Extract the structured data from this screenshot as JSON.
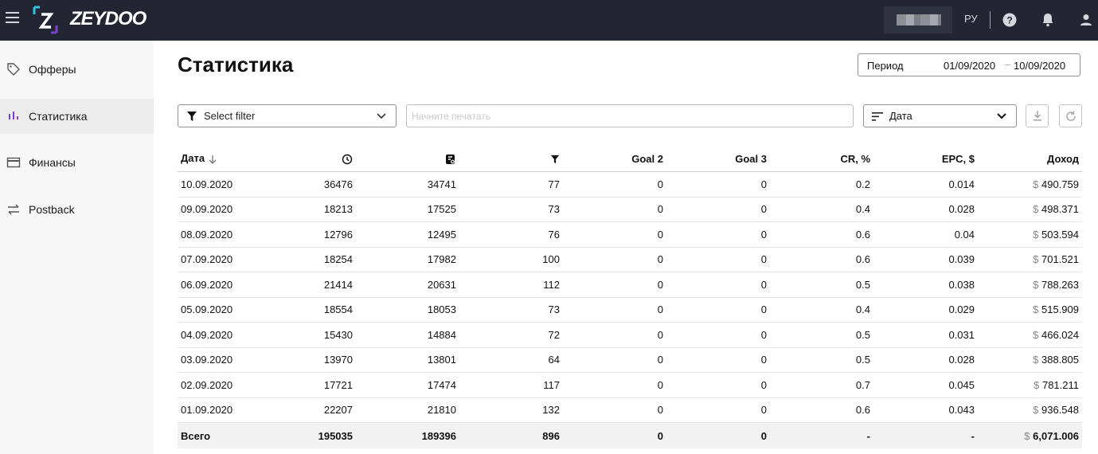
{
  "header": {
    "brand": "ZEYDOO",
    "language": "РУ"
  },
  "sidebar": {
    "items": [
      {
        "label": "Офферы",
        "icon": "tag-icon"
      },
      {
        "label": "Статистика",
        "icon": "bar-chart-icon",
        "active": true
      },
      {
        "label": "Финансы",
        "icon": "credit-card-icon"
      },
      {
        "label": "Postback",
        "icon": "swap-arrows-icon"
      }
    ]
  },
  "page": {
    "title": "Статистика"
  },
  "period": {
    "label": "Период",
    "from": "01/09/2020",
    "dash": "–",
    "to": "10/09/2020"
  },
  "toolbar": {
    "filter_label": "Select filter",
    "search_placeholder": "Начните печатать",
    "sort_label": "Дата"
  },
  "table": {
    "date_header": "Дата",
    "header_icons": [
      "clock-icon",
      "click-icon",
      "funnel-icon"
    ],
    "goal2_header": "Goal 2",
    "goal3_header": "Goal 3",
    "cr_header": "CR, %",
    "epc_header": "EPC, $",
    "income_header": "Доход",
    "currency": "$",
    "rows": [
      {
        "date": "10.09.2020",
        "c1": "36476",
        "c2": "34741",
        "c3": "77",
        "goal2": "0",
        "goal3": "0",
        "cr": "0.2",
        "epc": "0.014",
        "income": "490.759"
      },
      {
        "date": "09.09.2020",
        "c1": "18213",
        "c2": "17525",
        "c3": "73",
        "goal2": "0",
        "goal3": "0",
        "cr": "0.4",
        "epc": "0.028",
        "income": "498.371"
      },
      {
        "date": "08.09.2020",
        "c1": "12796",
        "c2": "12495",
        "c3": "76",
        "goal2": "0",
        "goal3": "0",
        "cr": "0.6",
        "epc": "0.04",
        "income": "503.594"
      },
      {
        "date": "07.09.2020",
        "c1": "18254",
        "c2": "17982",
        "c3": "100",
        "goal2": "0",
        "goal3": "0",
        "cr": "0.6",
        "epc": "0.039",
        "income": "701.521"
      },
      {
        "date": "06.09.2020",
        "c1": "21414",
        "c2": "20631",
        "c3": "112",
        "goal2": "0",
        "goal3": "0",
        "cr": "0.5",
        "epc": "0.038",
        "income": "788.263"
      },
      {
        "date": "05.09.2020",
        "c1": "18554",
        "c2": "18053",
        "c3": "73",
        "goal2": "0",
        "goal3": "0",
        "cr": "0.4",
        "epc": "0.029",
        "income": "515.909"
      },
      {
        "date": "04.09.2020",
        "c1": "15430",
        "c2": "14884",
        "c3": "72",
        "goal2": "0",
        "goal3": "0",
        "cr": "0.5",
        "epc": "0.031",
        "income": "466.024"
      },
      {
        "date": "03.09.2020",
        "c1": "13970",
        "c2": "13801",
        "c3": "64",
        "goal2": "0",
        "goal3": "0",
        "cr": "0.5",
        "epc": "0.028",
        "income": "388.805"
      },
      {
        "date": "02.09.2020",
        "c1": "17721",
        "c2": "17474",
        "c3": "117",
        "goal2": "0",
        "goal3": "0",
        "cr": "0.7",
        "epc": "0.045",
        "income": "781.211"
      },
      {
        "date": "01.09.2020",
        "c1": "22207",
        "c2": "21810",
        "c3": "132",
        "goal2": "0",
        "goal3": "0",
        "cr": "0.6",
        "epc": "0.043",
        "income": "936.548"
      }
    ],
    "total": {
      "label": "Всего",
      "c1": "195035",
      "c2": "189396",
      "c3": "896",
      "goal2": "0",
      "goal3": "0",
      "cr": "-",
      "epc": "-",
      "income": "6,071.006"
    }
  },
  "colors": {
    "topbar": "#232632",
    "sidebar": "#f7f7f7",
    "sidebar_active": "#ececec",
    "accent": "#7b3fd1",
    "logo_cyan": "#2ec4e6"
  }
}
